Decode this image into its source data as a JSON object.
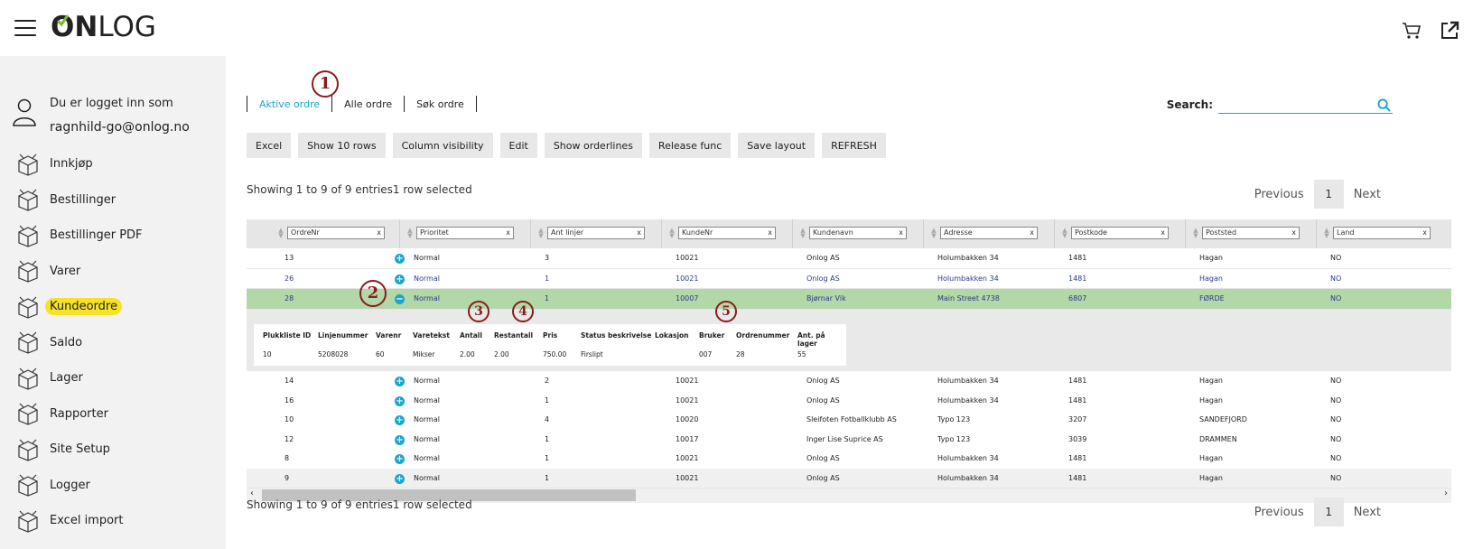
{
  "brand": {
    "logo_bold": "ON",
    "logo_rest": "LOG"
  },
  "header": {
    "cart_icon": "cart-icon",
    "external_icon": "external-link-icon"
  },
  "user": {
    "line1": "Du er logget inn som",
    "line2": "ragnhild-go@onlog.no"
  },
  "nav": [
    "Innkjøp",
    "Bestillinger",
    "Bestillinger PDF",
    "Varer",
    "Kundeordre",
    "Saldo",
    "Lager",
    "Rapporter",
    "Site Setup",
    "Logger",
    "Excel import"
  ],
  "tabs": [
    "Aktive ordre",
    "Alle ordre",
    "Søk ordre"
  ],
  "search_label": "Search:",
  "buttons": [
    "Excel",
    "Show 10 rows",
    "Column visibility",
    "Edit",
    "Show orderlines",
    "Release func",
    "Save layout",
    "REFRESH"
  ],
  "info_top": "Showing 1 to 9 of 9 entries1 row selected",
  "info_bottom": "Showing 1 to 9 of 9 entries1 row selected",
  "pager": {
    "prev": "Previous",
    "page": "1",
    "next": "Next"
  },
  "columns": [
    "OrdreNr",
    "Prioritet",
    "Ant linjer",
    "KundeNr",
    "Kundenavn",
    "Adresse",
    "Postkode",
    "Poststed",
    "Land"
  ],
  "filter_clear": "x",
  "rows_top": [
    [
      "13",
      "Normal",
      "3",
      "10021",
      "Onlog AS",
      "Holumbakken 34",
      "1481",
      "Hagan",
      "NO"
    ],
    [
      "26",
      "Normal",
      "1",
      "10021",
      "Onlog AS",
      "Holumbakken 34",
      "1481",
      "Hagan",
      "NO"
    ]
  ],
  "row_selected": [
    "28",
    "Normal",
    "1",
    "10007",
    "Bjørnar Vik",
    "Main Street 4738",
    "6807",
    "FØRDE",
    "NO"
  ],
  "detail": {
    "headers": [
      "Plukkliste ID",
      "Linjenummer",
      "Varenr",
      "Varetekst",
      "Antall",
      "Restantall",
      "Pris",
      "Status beskrivelse",
      "Lokasjon",
      "Bruker",
      "Ordrenummer",
      "Ant. på lager"
    ],
    "values": [
      "10",
      "5208028",
      "60",
      "Mikser",
      "2.00",
      "2.00",
      "750.00",
      "Firslipt",
      "",
      "007",
      "28",
      "55"
    ]
  },
  "rows_bottom": [
    [
      "14",
      "Normal",
      "2",
      "10021",
      "Onlog AS",
      "Holumbakken 34",
      "1481",
      "Hagan",
      "NO"
    ],
    [
      "16",
      "Normal",
      "1",
      "10021",
      "Onlog AS",
      "Holumbakken 34",
      "1481",
      "Hagan",
      "NO"
    ],
    [
      "10",
      "Normal",
      "4",
      "10020",
      "Sleifoten Fotballklubb AS",
      "Typo 123",
      "3207",
      "SANDEFJORD",
      "NO"
    ],
    [
      "12",
      "Normal",
      "1",
      "10017",
      "Inger Lise Suprice AS",
      "Typo 123",
      "3039",
      "DRAMMEN",
      "NO"
    ],
    [
      "8",
      "Normal",
      "1",
      "10021",
      "Onlog AS",
      "Holumbakken 34",
      "1481",
      "Hagan",
      "NO"
    ],
    [
      "9",
      "Normal",
      "1",
      "10021",
      "Onlog AS",
      "Holumbakken 34",
      "1481",
      "Hagan",
      "NO"
    ]
  ],
  "markers": [
    "1",
    "2",
    "3",
    "4",
    "5"
  ],
  "scroll": {
    "left": "‹",
    "right": "›"
  }
}
